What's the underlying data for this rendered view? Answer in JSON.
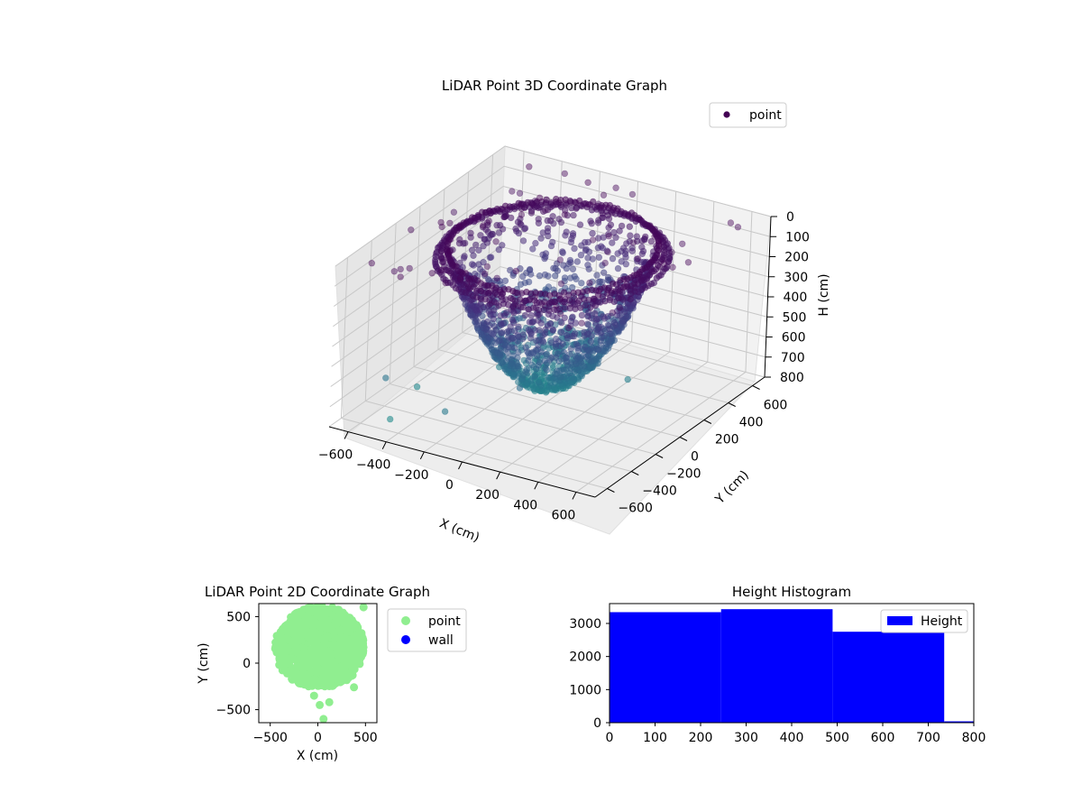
{
  "chart_data": [
    {
      "type": "scatter",
      "title": "LiDAR Point 3D Coordinate Graph",
      "xlabel": "X (cm)",
      "ylabel": "Y (cm)",
      "zlabel": "H (cm)",
      "xlim": [
        -700,
        700
      ],
      "ylim": [
        -700,
        700
      ],
      "zlim": [
        0,
        800
      ],
      "zinverted": true,
      "xticks": [
        -600,
        -400,
        -200,
        0,
        200,
        400,
        600
      ],
      "yticks": [
        -600,
        -400,
        -200,
        0,
        200,
        400,
        600
      ],
      "zticks": [
        0,
        100,
        200,
        300,
        400,
        500,
        600,
        700,
        800
      ],
      "legend": {
        "position": "top-right",
        "entries": [
          "point"
        ]
      },
      "colormap": "viridis",
      "grid": true,
      "series": [
        {
          "name": "point",
          "color": "#440154",
          "description_shape": "hemispherical bowl of points, radius ~450 cm, depth 0–700 cm, plus scattered outliers near H=0"
        }
      ]
    },
    {
      "type": "scatter",
      "title": "LiDAR Point 2D Coordinate Graph",
      "xlabel": "X (cm)",
      "ylabel": "Y (cm)",
      "xlim": [
        -620,
        620
      ],
      "ylim": [
        -640,
        640
      ],
      "xticks": [
        -500,
        0,
        500
      ],
      "yticks": [
        -500,
        0,
        500
      ],
      "legend": {
        "position": "outside-right",
        "entries": [
          "point",
          "wall"
        ]
      },
      "series": [
        {
          "name": "point",
          "color": "#90ee90"
        },
        {
          "name": "wall",
          "color": "#0000ff"
        }
      ]
    },
    {
      "type": "bar",
      "title": "Height Histogram",
      "xlim": [
        0,
        800
      ],
      "ylim": [
        0,
        3600
      ],
      "xticks": [
        0,
        100,
        200,
        300,
        400,
        500,
        600,
        700,
        800
      ],
      "yticks": [
        0,
        1000,
        2000,
        3000
      ],
      "legend": {
        "position": "top-right",
        "entries": [
          "Height"
        ]
      },
      "bins": [
        {
          "start": 0,
          "end": 245,
          "count": 3340
        },
        {
          "start": 245,
          "end": 490,
          "count": 3430
        },
        {
          "start": 490,
          "end": 735,
          "count": 2750
        },
        {
          "start": 735,
          "end": 980,
          "count": 40
        }
      ],
      "series": [
        {
          "name": "Height",
          "color": "#0000ff"
        }
      ]
    }
  ]
}
